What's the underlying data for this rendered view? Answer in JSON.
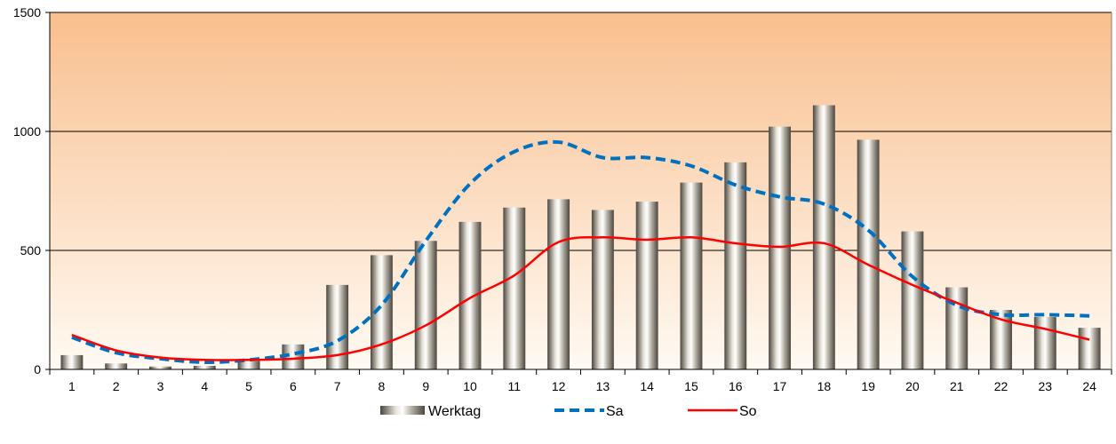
{
  "chart_data": {
    "type": "bar",
    "categories": [
      "1",
      "2",
      "3",
      "4",
      "5",
      "6",
      "7",
      "8",
      "9",
      "10",
      "11",
      "12",
      "13",
      "14",
      "15",
      "16",
      "17",
      "18",
      "19",
      "20",
      "21",
      "22",
      "23",
      "24"
    ],
    "series": [
      {
        "name": "Werktag",
        "type": "bar",
        "values": [
          60,
          25,
          12,
          15,
          35,
          105,
          355,
          480,
          540,
          620,
          680,
          715,
          670,
          705,
          785,
          870,
          1020,
          1110,
          965,
          580,
          345,
          250,
          220,
          175
        ]
      },
      {
        "name": "Sa",
        "type": "line",
        "style": "dashed",
        "color": "#0070c0",
        "values": [
          135,
          70,
          45,
          30,
          40,
          65,
          120,
          270,
          540,
          780,
          915,
          955,
          890,
          890,
          855,
          775,
          725,
          695,
          585,
          390,
          270,
          230,
          230,
          225
        ]
      },
      {
        "name": "So",
        "type": "line",
        "style": "solid",
        "color": "#ff0000",
        "values": [
          145,
          80,
          50,
          40,
          40,
          45,
          60,
          105,
          185,
          300,
          395,
          535,
          555,
          545,
          555,
          530,
          515,
          530,
          440,
          355,
          280,
          210,
          170,
          125
        ]
      }
    ],
    "ylim": [
      0,
      1500
    ],
    "yticks": [
      0,
      500,
      1000,
      1500
    ],
    "grid": true,
    "legend": "bottom",
    "background": {
      "top": "#f9bf8e",
      "bottom": "#fffaf3"
    },
    "bar_gradient": [
      "#4a463f",
      "#ffffff",
      "#4a463f"
    ]
  }
}
